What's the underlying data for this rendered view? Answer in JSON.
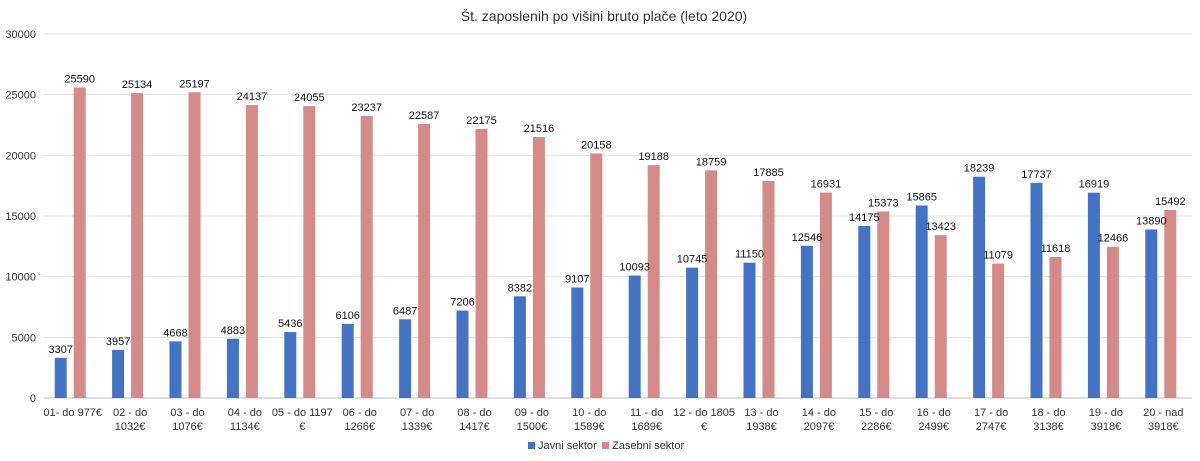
{
  "chart_data": {
    "type": "bar",
    "title": "Št. zaposlenih po višini bruto plače (leto 2020)",
    "xlabel": "",
    "ylabel": "",
    "ylim": [
      0,
      30000
    ],
    "yticks": [
      0,
      5000,
      10000,
      15000,
      20000,
      25000,
      30000
    ],
    "grid": true,
    "legend_position": "bottom",
    "categories": [
      [
        "01- do 977€"
      ],
      [
        "02 - do",
        "1032€"
      ],
      [
        "03 - do",
        "1076€"
      ],
      [
        "04 - do",
        "1134€"
      ],
      [
        "05 - do 1197",
        "€"
      ],
      [
        "06 - do",
        "1266€"
      ],
      [
        "07 - do",
        "1339€"
      ],
      [
        "08 - do",
        "1417€"
      ],
      [
        "09 - do",
        "1500€"
      ],
      [
        "10 - do",
        "1589€"
      ],
      [
        "11 - do",
        "1689€"
      ],
      [
        "12 - do 1805",
        "€"
      ],
      [
        "13 - do",
        "1938€"
      ],
      [
        "14 - do",
        "2097€"
      ],
      [
        "15 - do",
        "2286€"
      ],
      [
        "16 - do",
        "2499€"
      ],
      [
        "17 - do",
        "2747€"
      ],
      [
        "18 - do",
        "3138€"
      ],
      [
        "19 - do",
        "3918€"
      ],
      [
        "20 - nad",
        "3918€"
      ]
    ],
    "series": [
      {
        "name": "Javni sektor",
        "color": "#4472C4",
        "values": [
          3307,
          3957,
          4668,
          4883,
          5436,
          6106,
          6487,
          7206,
          8382,
          9107,
          10093,
          10745,
          11150,
          12546,
          14175,
          15865,
          18239,
          17737,
          16919,
          13890
        ]
      },
      {
        "name": "Zasebni sektor",
        "color": "#D48A88",
        "values": [
          25590,
          25134,
          25197,
          24137,
          24055,
          23237,
          22587,
          22175,
          21516,
          20158,
          19188,
          18759,
          17885,
          16931,
          15373,
          13423,
          11079,
          11618,
          12466,
          15492
        ]
      }
    ]
  }
}
